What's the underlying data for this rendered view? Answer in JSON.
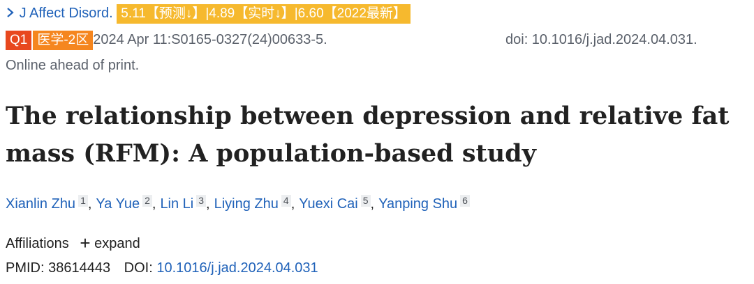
{
  "journal": {
    "name": "J Affect Disord.",
    "impact_badge": "5.11【预测↓】|4.89【实时↓】|6.60【2022最新】"
  },
  "badges": {
    "quartile": "Q1",
    "zone": "医学-2区"
  },
  "citation": {
    "date_pages": "2024 Apr 11:S0165-0327(24)00633-5.",
    "doi": "doi: 10.1016/j.jad.2024.04.031.",
    "status": "Online ahead of print."
  },
  "title": "The relationship between depression and relative fat mass (RFM): A population-based study",
  "authors": [
    {
      "name": "Xianlin Zhu",
      "affiliation": "1",
      "separator": ","
    },
    {
      "name": "Ya Yue",
      "affiliation": "2",
      "separator": ","
    },
    {
      "name": "Lin Li",
      "affiliation": "3",
      "separator": ","
    },
    {
      "name": "Liying Zhu",
      "affiliation": "4",
      "separator": ","
    },
    {
      "name": "Yuexi Cai",
      "affiliation": "5",
      "separator": ","
    },
    {
      "name": "Yanping Shu",
      "affiliation": "6"
    }
  ],
  "affiliations": {
    "label": "Affiliations",
    "icon": "+",
    "action": "expand"
  },
  "identifiers": {
    "pmid_label": "PMID:",
    "pmid": "38614443",
    "doi_label": "DOI:",
    "doi": "10.1016/j.jad.2024.04.031"
  }
}
